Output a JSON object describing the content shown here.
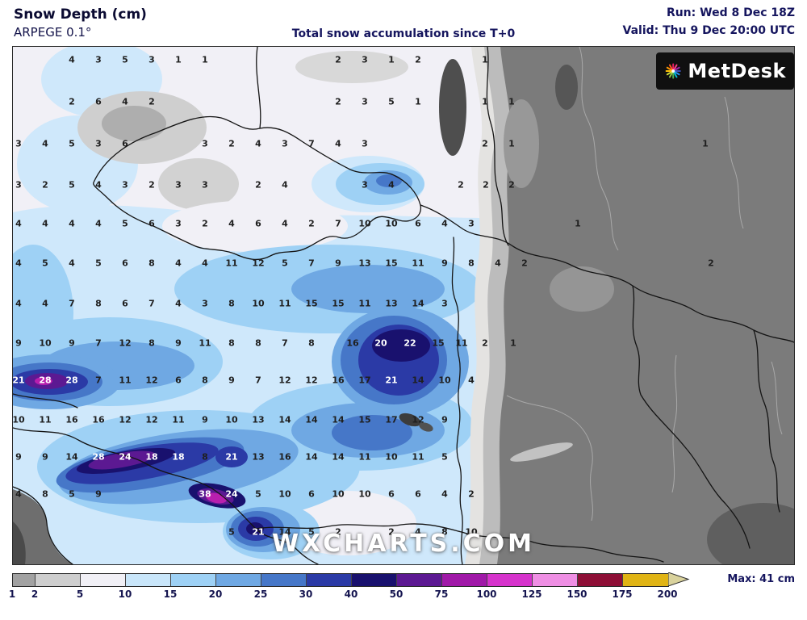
{
  "header": {
    "title": "Snow Depth (cm)",
    "model": "ARPEGE 0.1°",
    "subtitle": "Total snow accumulation since T+0",
    "run": "Run: Wed 8 Dec 18Z",
    "valid": "Valid: Thu 9 Dec 20:00 UTC"
  },
  "branding": {
    "logo_text": "MetDesk",
    "logo_icon": "starburst-icon",
    "watermark": "WXCHARTS.COM"
  },
  "legend": {
    "max_label": "Max: 41 cm",
    "unit": "cm",
    "thresholds": [
      "1",
      "2",
      "5",
      "10",
      "15",
      "20",
      "25",
      "30",
      "40",
      "50",
      "75",
      "100",
      "125",
      "150",
      "175",
      "200"
    ],
    "band_colors": [
      "#a2a2a2",
      "#cecece",
      "#f1f0f6",
      "#c9e6fa",
      "#9ed1f5",
      "#6fa8e3",
      "#4677c8",
      "#2b3aa6",
      "#19116e",
      "#5c1992",
      "#a019a8",
      "#d633cc",
      "#ef8fe4",
      "#8e0f36",
      "#e0b414"
    ],
    "overflow_color": "#d9d29c"
  },
  "map": {
    "note_values_are_cm": true,
    "values": [
      [
        73,
        16,
        4
      ],
      [
        106,
        16,
        3
      ],
      [
        139,
        16,
        5
      ],
      [
        172,
        16,
        3
      ],
      [
        205,
        16,
        1
      ],
      [
        238,
        16,
        1
      ],
      [
        403,
        16,
        2
      ],
      [
        436,
        16,
        3
      ],
      [
        469,
        16,
        1
      ],
      [
        502,
        16,
        2
      ],
      [
        585,
        16,
        1
      ],
      [
        73,
        68,
        2
      ],
      [
        106,
        68,
        6
      ],
      [
        139,
        68,
        4
      ],
      [
        172,
        68,
        2
      ],
      [
        403,
        68,
        2
      ],
      [
        436,
        68,
        3
      ],
      [
        469,
        68,
        5
      ],
      [
        502,
        68,
        1
      ],
      [
        585,
        68,
        1
      ],
      [
        618,
        68,
        1
      ],
      [
        7,
        120,
        3
      ],
      [
        40,
        120,
        4
      ],
      [
        73,
        120,
        5
      ],
      [
        106,
        120,
        3
      ],
      [
        139,
        120,
        6
      ],
      [
        238,
        120,
        3
      ],
      [
        271,
        120,
        2
      ],
      [
        304,
        120,
        4
      ],
      [
        337,
        120,
        3
      ],
      [
        370,
        120,
        7
      ],
      [
        403,
        120,
        4
      ],
      [
        436,
        120,
        3
      ],
      [
        585,
        120,
        2
      ],
      [
        618,
        120,
        1
      ],
      [
        858,
        120,
        1
      ],
      [
        7,
        171,
        3
      ],
      [
        40,
        171,
        2
      ],
      [
        73,
        171,
        5
      ],
      [
        106,
        171,
        4
      ],
      [
        139,
        171,
        3
      ],
      [
        172,
        171,
        2
      ],
      [
        205,
        171,
        3
      ],
      [
        238,
        171,
        3
      ],
      [
        304,
        171,
        2
      ],
      [
        337,
        171,
        4
      ],
      [
        436,
        171,
        3
      ],
      [
        469,
        171,
        4
      ],
      [
        555,
        171,
        2
      ],
      [
        586,
        171,
        2
      ],
      [
        618,
        171,
        2
      ],
      [
        7,
        219,
        4
      ],
      [
        40,
        219,
        4
      ],
      [
        73,
        219,
        4
      ],
      [
        106,
        219,
        4
      ],
      [
        139,
        219,
        5
      ],
      [
        172,
        219,
        6
      ],
      [
        205,
        219,
        3
      ],
      [
        238,
        219,
        2
      ],
      [
        271,
        219,
        4
      ],
      [
        304,
        219,
        6
      ],
      [
        337,
        219,
        4
      ],
      [
        370,
        219,
        2
      ],
      [
        403,
        219,
        7
      ],
      [
        436,
        219,
        10
      ],
      [
        469,
        219,
        10
      ],
      [
        502,
        219,
        6
      ],
      [
        535,
        219,
        4
      ],
      [
        568,
        219,
        3
      ],
      [
        700,
        219,
        1
      ],
      [
        7,
        268,
        4
      ],
      [
        40,
        268,
        5
      ],
      [
        73,
        268,
        4
      ],
      [
        106,
        268,
        5
      ],
      [
        139,
        268,
        6
      ],
      [
        172,
        268,
        8
      ],
      [
        205,
        268,
        4
      ],
      [
        238,
        268,
        4
      ],
      [
        271,
        268,
        11
      ],
      [
        304,
        268,
        12
      ],
      [
        337,
        268,
        5
      ],
      [
        370,
        268,
        7
      ],
      [
        403,
        268,
        9
      ],
      [
        436,
        268,
        13
      ],
      [
        469,
        268,
        15
      ],
      [
        502,
        268,
        11
      ],
      [
        535,
        268,
        9
      ],
      [
        568,
        268,
        8
      ],
      [
        601,
        268,
        4
      ],
      [
        634,
        268,
        2
      ],
      [
        865,
        268,
        2
      ],
      [
        7,
        318,
        4
      ],
      [
        40,
        318,
        4
      ],
      [
        73,
        318,
        7
      ],
      [
        106,
        318,
        8
      ],
      [
        139,
        318,
        6
      ],
      [
        172,
        318,
        7
      ],
      [
        205,
        318,
        4
      ],
      [
        238,
        318,
        3
      ],
      [
        271,
        318,
        8
      ],
      [
        304,
        318,
        10
      ],
      [
        337,
        318,
        11
      ],
      [
        370,
        318,
        15
      ],
      [
        403,
        318,
        15
      ],
      [
        436,
        318,
        11
      ],
      [
        469,
        318,
        13
      ],
      [
        502,
        318,
        14
      ],
      [
        535,
        318,
        3
      ],
      [
        7,
        367,
        9
      ],
      [
        40,
        367,
        10
      ],
      [
        73,
        367,
        9
      ],
      [
        106,
        367,
        7
      ],
      [
        139,
        367,
        12
      ],
      [
        172,
        367,
        8
      ],
      [
        205,
        367,
        9
      ],
      [
        238,
        367,
        11
      ],
      [
        271,
        367,
        8
      ],
      [
        304,
        367,
        8
      ],
      [
        337,
        367,
        7
      ],
      [
        370,
        367,
        8
      ],
      [
        421,
        367,
        16
      ],
      [
        456,
        367,
        20,
        1
      ],
      [
        492,
        367,
        22,
        1
      ],
      [
        527,
        367,
        15
      ],
      [
        556,
        367,
        11
      ],
      [
        585,
        367,
        2
      ],
      [
        620,
        367,
        1
      ],
      [
        7,
        413,
        21,
        1
      ],
      [
        40,
        413,
        28,
        1
      ],
      [
        73,
        413,
        28,
        1
      ],
      [
        106,
        413,
        7
      ],
      [
        139,
        413,
        11
      ],
      [
        172,
        413,
        12
      ],
      [
        205,
        413,
        6
      ],
      [
        238,
        413,
        8
      ],
      [
        271,
        413,
        9
      ],
      [
        304,
        413,
        7
      ],
      [
        337,
        413,
        12
      ],
      [
        370,
        413,
        12
      ],
      [
        403,
        413,
        16
      ],
      [
        436,
        413,
        17
      ],
      [
        469,
        413,
        21,
        1
      ],
      [
        502,
        413,
        14
      ],
      [
        535,
        413,
        10
      ],
      [
        568,
        413,
        4
      ],
      [
        7,
        462,
        10
      ],
      [
        40,
        462,
        11
      ],
      [
        73,
        462,
        16
      ],
      [
        106,
        462,
        16
      ],
      [
        139,
        462,
        12
      ],
      [
        172,
        462,
        12
      ],
      [
        205,
        462,
        11
      ],
      [
        238,
        462,
        9
      ],
      [
        271,
        462,
        10
      ],
      [
        304,
        462,
        13
      ],
      [
        337,
        462,
        14
      ],
      [
        370,
        462,
        14
      ],
      [
        403,
        462,
        14
      ],
      [
        436,
        462,
        15
      ],
      [
        469,
        462,
        17
      ],
      [
        502,
        462,
        12
      ],
      [
        535,
        462,
        9
      ],
      [
        7,
        508,
        9
      ],
      [
        40,
        508,
        9
      ],
      [
        73,
        508,
        14
      ],
      [
        106,
        508,
        28,
        1
      ],
      [
        139,
        508,
        24,
        1
      ],
      [
        172,
        508,
        18,
        1
      ],
      [
        205,
        508,
        18,
        1
      ],
      [
        238,
        508,
        8
      ],
      [
        271,
        508,
        21,
        1
      ],
      [
        304,
        508,
        13
      ],
      [
        337,
        508,
        16
      ],
      [
        370,
        508,
        14
      ],
      [
        403,
        508,
        14
      ],
      [
        436,
        508,
        11
      ],
      [
        469,
        508,
        10
      ],
      [
        502,
        508,
        11
      ],
      [
        535,
        508,
        5
      ],
      [
        7,
        554,
        4
      ],
      [
        40,
        554,
        8
      ],
      [
        73,
        554,
        5
      ],
      [
        106,
        554,
        9
      ],
      [
        238,
        554,
        38,
        1
      ],
      [
        271,
        554,
        24,
        1
      ],
      [
        304,
        554,
        5
      ],
      [
        337,
        554,
        10
      ],
      [
        370,
        554,
        6
      ],
      [
        403,
        554,
        10
      ],
      [
        436,
        554,
        10
      ],
      [
        469,
        554,
        6
      ],
      [
        502,
        554,
        6
      ],
      [
        535,
        554,
        4
      ],
      [
        568,
        554,
        2
      ],
      [
        271,
        601,
        5
      ],
      [
        304,
        601,
        21,
        1
      ],
      [
        337,
        601,
        14
      ],
      [
        370,
        601,
        5
      ],
      [
        403,
        601,
        2
      ],
      [
        469,
        601,
        2
      ],
      [
        502,
        601,
        4
      ],
      [
        535,
        601,
        8
      ],
      [
        568,
        601,
        10
      ]
    ]
  }
}
